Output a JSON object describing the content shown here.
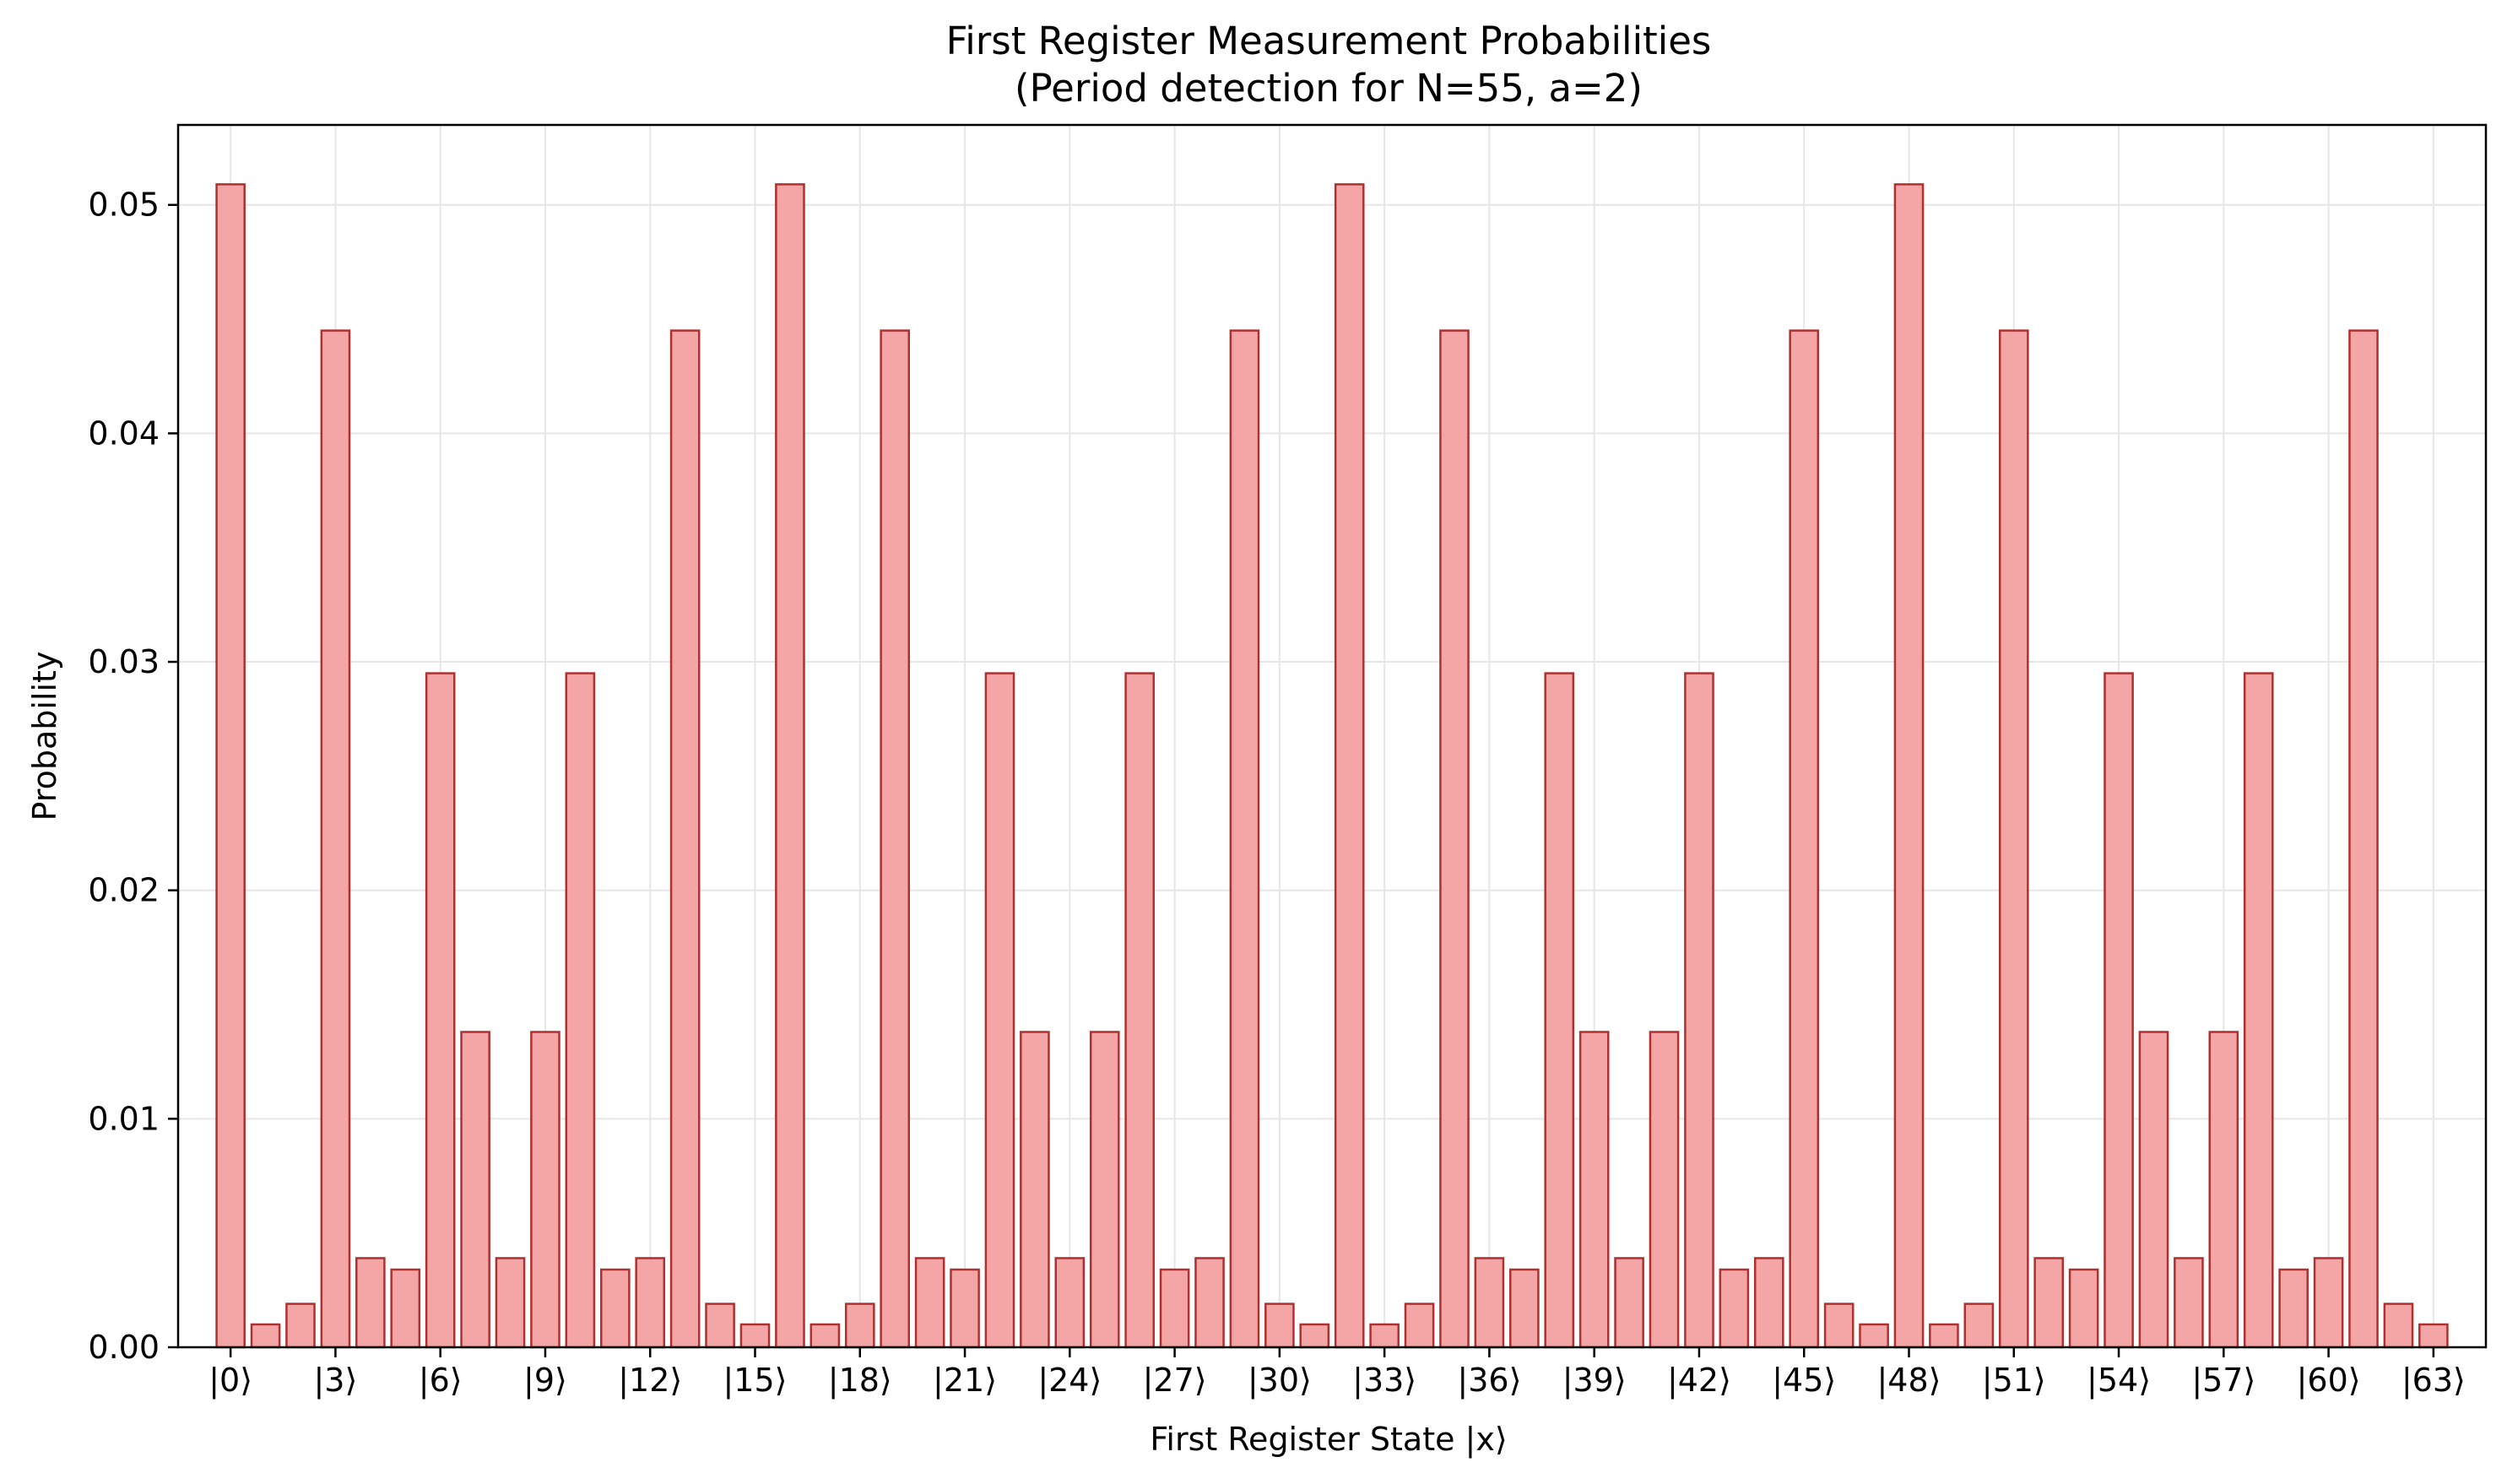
{
  "chart_data": {
    "type": "bar",
    "title": "First Register Measurement Probabilities",
    "subtitle": "(Period detection for N=55, a=2)",
    "xlabel": "First Register State |x⟩",
    "ylabel": "Probability",
    "ylim": [
      0,
      0.0535
    ],
    "xlim": [
      -1.5,
      64.5
    ],
    "yticks": [
      0.0,
      0.01,
      0.02,
      0.03,
      0.04,
      0.05
    ],
    "ytick_labels": [
      "0.00",
      "0.01",
      "0.02",
      "0.03",
      "0.04",
      "0.05"
    ],
    "xtick_positions": [
      0,
      3,
      6,
      9,
      12,
      15,
      18,
      21,
      24,
      27,
      30,
      33,
      36,
      39,
      42,
      45,
      48,
      51,
      54,
      57,
      60,
      63
    ],
    "xtick_labels": [
      "|0⟩",
      "|3⟩",
      "|6⟩",
      "|9⟩",
      "|12⟩",
      "|15⟩",
      "|18⟩",
      "|21⟩",
      "|24⟩",
      "|27⟩",
      "|30⟩",
      "|33⟩",
      "|36⟩",
      "|39⟩",
      "|42⟩",
      "|45⟩",
      "|48⟩",
      "|51⟩",
      "|54⟩",
      "|57⟩",
      "|60⟩",
      "|63⟩"
    ],
    "categories": [
      "|0⟩",
      "|1⟩",
      "|2⟩",
      "|3⟩",
      "|4⟩",
      "|5⟩",
      "|6⟩",
      "|7⟩",
      "|8⟩",
      "|9⟩",
      "|10⟩",
      "|11⟩",
      "|12⟩",
      "|13⟩",
      "|14⟩",
      "|15⟩",
      "|16⟩",
      "|17⟩",
      "|18⟩",
      "|19⟩",
      "|20⟩",
      "|21⟩",
      "|22⟩",
      "|23⟩",
      "|24⟩",
      "|25⟩",
      "|26⟩",
      "|27⟩",
      "|28⟩",
      "|29⟩",
      "|30⟩",
      "|31⟩",
      "|32⟩",
      "|33⟩",
      "|34⟩",
      "|35⟩",
      "|36⟩",
      "|37⟩",
      "|38⟩",
      "|39⟩",
      "|40⟩",
      "|41⟩",
      "|42⟩",
      "|43⟩",
      "|44⟩",
      "|45⟩",
      "|46⟩",
      "|47⟩",
      "|48⟩",
      "|49⟩",
      "|50⟩",
      "|51⟩",
      "|52⟩",
      "|53⟩",
      "|54⟩",
      "|55⟩",
      "|56⟩",
      "|57⟩",
      "|58⟩",
      "|59⟩",
      "|60⟩",
      "|61⟩",
      "|62⟩",
      "|63⟩"
    ],
    "values": [
      0.0509,
      0.001,
      0.0019,
      0.0445,
      0.0039,
      0.0034,
      0.0295,
      0.0138,
      0.0039,
      0.0138,
      0.0295,
      0.0034,
      0.0039,
      0.0445,
      0.0019,
      0.001,
      0.0509,
      0.001,
      0.0019,
      0.0445,
      0.0039,
      0.0034,
      0.0295,
      0.0138,
      0.0039,
      0.0138,
      0.0295,
      0.0034,
      0.0039,
      0.0445,
      0.0019,
      0.001,
      0.0509,
      0.001,
      0.0019,
      0.0445,
      0.0039,
      0.0034,
      0.0295,
      0.0138,
      0.0039,
      0.0138,
      0.0295,
      0.0034,
      0.0039,
      0.0445,
      0.0019,
      0.001,
      0.0509,
      0.001,
      0.0019,
      0.0445,
      0.0039,
      0.0034,
      0.0295,
      0.0138,
      0.0039,
      0.0138,
      0.0295,
      0.0034,
      0.0039,
      0.0445,
      0.0019,
      0.001
    ],
    "grid": true,
    "colors": {
      "bar_fill": "#f4a6a6",
      "bar_edge": "#b03030",
      "grid": "#e6e6e6",
      "axis": "#000000"
    }
  }
}
